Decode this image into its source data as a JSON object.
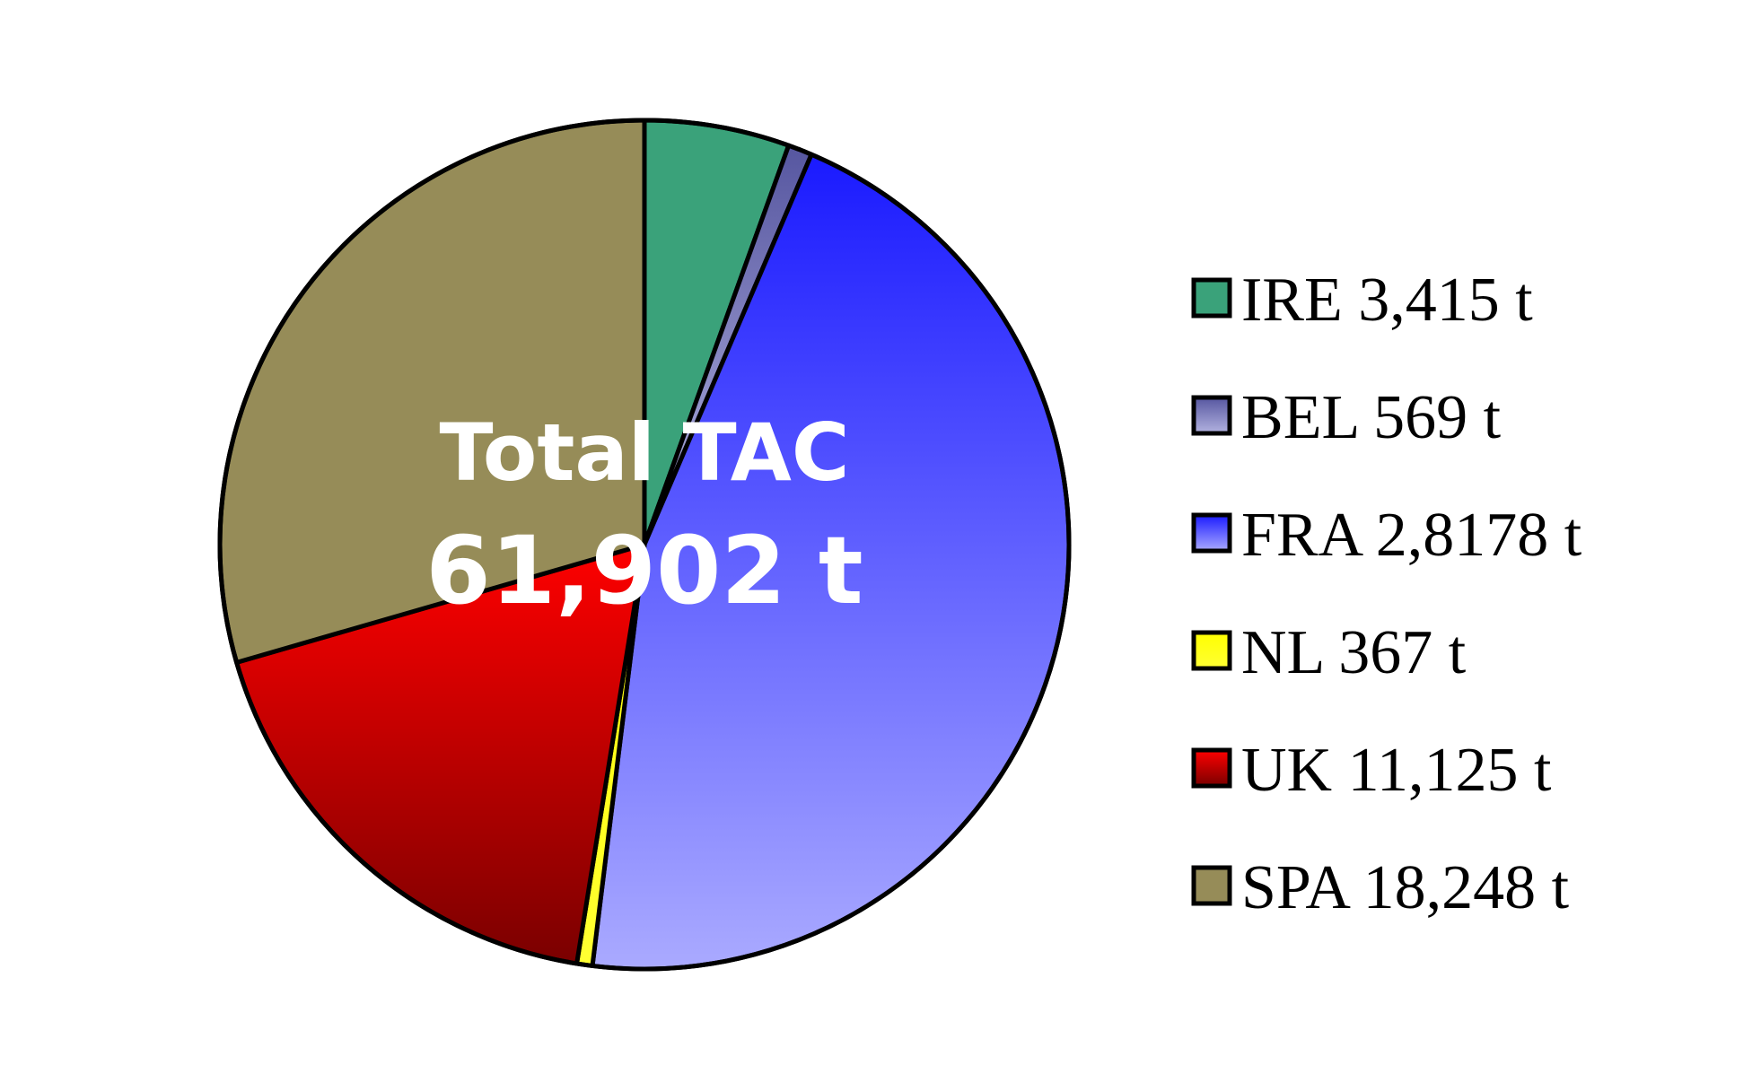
{
  "chart_data": {
    "type": "pie",
    "center_text": {
      "line1": "Total TAC",
      "line2": "61,902 t"
    },
    "legend_placement": "right",
    "slices": [
      {
        "name": "IRE",
        "label": "IRE 3,415 t",
        "value": 3415,
        "color_light": "#3aa27a",
        "color_dark": "#3aa27a"
      },
      {
        "name": "BEL",
        "label": "BEL 569 t",
        "value": 569,
        "color_light": "#b3b3e0",
        "color_dark": "#5656a0"
      },
      {
        "name": "FRA",
        "label": "FRA 2,8178 t",
        "value": 28178,
        "color_light": "#aaaaff",
        "color_dark": "#1a1aff"
      },
      {
        "name": "NL",
        "label": "NL 367 t",
        "value": 367,
        "color_light": "#ffff33",
        "color_dark": "#ffff00"
      },
      {
        "name": "UK",
        "label": "UK 11,125 t",
        "value": 11125,
        "color_light": "#ff0000",
        "color_dark": "#7a0000"
      },
      {
        "name": "SPA",
        "label": "SPA 18,248 t",
        "value": 18248,
        "color_light": "#968c58",
        "color_dark": "#968c58"
      }
    ]
  }
}
